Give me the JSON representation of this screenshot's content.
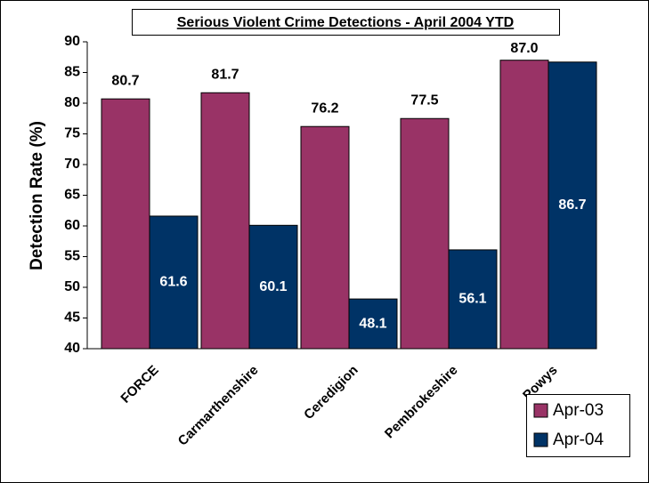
{
  "chart_data": {
    "type": "bar",
    "title": "Serious Violent Crime Detections - April 2004 YTD",
    "y_label": "Detection Rate (%)",
    "categories": [
      "FORCE",
      "Carmarthenshire",
      "Ceredigion",
      "Pembrokeshire",
      "Powys"
    ],
    "series": [
      {
        "name": "Apr-03",
        "color": "#993366",
        "values": [
          80.7,
          81.7,
          76.2,
          77.5,
          87.0
        ],
        "value_labels": [
          "80.7",
          "81.7",
          "76.2",
          "77.5",
          "87.0"
        ]
      },
      {
        "name": "Apr-04",
        "color": "#003366",
        "values": [
          61.6,
          60.1,
          48.1,
          56.1,
          86.7
        ],
        "value_labels": [
          "61.6",
          "60.1",
          "48.1",
          "56.1",
          "86.7"
        ]
      }
    ],
    "ylim": [
      40,
      90
    ],
    "yticks": [
      40,
      45,
      50,
      55,
      60,
      65,
      70,
      75,
      80,
      85,
      90
    ],
    "grid": false,
    "legend": "lower right"
  }
}
